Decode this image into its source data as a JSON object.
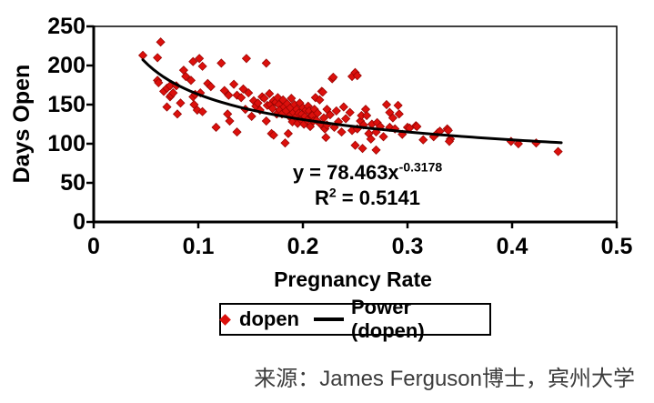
{
  "chart_data": {
    "type": "scatter",
    "xlabel": "Pregnancy Rate",
    "ylabel": "Days Open",
    "xlim": [
      0,
      0.5
    ],
    "ylim": [
      0,
      250
    ],
    "xticks": [
      0,
      0.1,
      0.2,
      0.3,
      0.4,
      0.5
    ],
    "yticks": [
      0,
      50,
      100,
      150,
      200,
      250
    ],
    "grid": false,
    "legend_position": "bottom-center",
    "colors": {
      "marker_fill": "#DC100C",
      "marker_stroke": "#9B0503",
      "trendline": "#000000",
      "axis": "#000000"
    },
    "series": [
      {
        "name": "dopen",
        "kind": "scatter",
        "marker": "diamond",
        "points": [
          [
            0.047,
            213
          ],
          [
            0.061,
            210
          ],
          [
            0.061,
            181
          ],
          [
            0.062,
            178
          ],
          [
            0.064,
            230
          ],
          [
            0.067,
            167
          ],
          [
            0.07,
            171
          ],
          [
            0.07,
            147
          ],
          [
            0.073,
            174
          ],
          [
            0.073,
            160
          ],
          [
            0.074,
            162
          ],
          [
            0.076,
            165
          ],
          [
            0.079,
            174
          ],
          [
            0.08,
            138
          ],
          [
            0.083,
            152
          ],
          [
            0.086,
            194
          ],
          [
            0.088,
            186
          ],
          [
            0.093,
            181
          ],
          [
            0.095,
            205
          ],
          [
            0.095,
            160
          ],
          [
            0.096,
            150
          ],
          [
            0.097,
            163
          ],
          [
            0.099,
            143
          ],
          [
            0.101,
            209
          ],
          [
            0.102,
            165
          ],
          [
            0.104,
            199
          ],
          [
            0.104,
            141
          ],
          [
            0.109,
            177
          ],
          [
            0.112,
            173
          ],
          [
            0.117,
            121
          ],
          [
            0.122,
            203
          ],
          [
            0.125,
            168
          ],
          [
            0.128,
            138
          ],
          [
            0.129,
            162
          ],
          [
            0.13,
            129
          ],
          [
            0.134,
            176
          ],
          [
            0.137,
            162
          ],
          [
            0.137,
            115
          ],
          [
            0.141,
            159
          ],
          [
            0.143,
            170
          ],
          [
            0.145,
            144
          ],
          [
            0.146,
            209
          ],
          [
            0.148,
            165
          ],
          [
            0.151,
            135
          ],
          [
            0.153,
            155
          ],
          [
            0.155,
            148
          ],
          [
            0.157,
            152
          ],
          [
            0.159,
            143
          ],
          [
            0.161,
            160
          ],
          [
            0.163,
            158
          ],
          [
            0.165,
            203
          ],
          [
            0.165,
            129
          ],
          [
            0.166,
            149
          ],
          [
            0.168,
            164
          ],
          [
            0.169,
            150
          ],
          [
            0.17,
            113
          ],
          [
            0.171,
            145
          ],
          [
            0.172,
            155
          ],
          [
            0.172,
            111
          ],
          [
            0.174,
            153
          ],
          [
            0.175,
            138
          ],
          [
            0.176,
            159
          ],
          [
            0.177,
            150
          ],
          [
            0.178,
            143
          ],
          [
            0.18,
            138
          ],
          [
            0.181,
            156
          ],
          [
            0.182,
            147
          ],
          [
            0.183,
            101
          ],
          [
            0.184,
            142
          ],
          [
            0.185,
            151
          ],
          [
            0.186,
            113
          ],
          [
            0.187,
            135
          ],
          [
            0.188,
            146
          ],
          [
            0.189,
            158
          ],
          [
            0.19,
            128
          ],
          [
            0.191,
            140
          ],
          [
            0.192,
            150
          ],
          [
            0.193,
            134
          ],
          [
            0.194,
            144
          ],
          [
            0.195,
            126
          ],
          [
            0.196,
            139
          ],
          [
            0.197,
            152
          ],
          [
            0.198,
            131
          ],
          [
            0.199,
            138
          ],
          [
            0.2,
            146
          ],
          [
            0.201,
            125
          ],
          [
            0.202,
            135
          ],
          [
            0.203,
            143
          ],
          [
            0.204,
            130
          ],
          [
            0.205,
            148
          ],
          [
            0.206,
            142
          ],
          [
            0.207,
            122
          ],
          [
            0.208,
            136
          ],
          [
            0.209,
            136
          ],
          [
            0.21,
            129
          ],
          [
            0.211,
            144
          ],
          [
            0.212,
            159
          ],
          [
            0.213,
            130
          ],
          [
            0.214,
            139
          ],
          [
            0.216,
            156
          ],
          [
            0.217,
            125
          ],
          [
            0.218,
            167
          ],
          [
            0.219,
            166
          ],
          [
            0.22,
            133
          ],
          [
            0.221,
            119
          ],
          [
            0.222,
            108
          ],
          [
            0.223,
            144
          ],
          [
            0.223,
            124
          ],
          [
            0.226,
            137
          ],
          [
            0.228,
            183
          ],
          [
            0.229,
            185
          ],
          [
            0.23,
            121
          ],
          [
            0.232,
            142
          ],
          [
            0.234,
            128
          ],
          [
            0.237,
            115
          ],
          [
            0.239,
            147
          ],
          [
            0.241,
            132
          ],
          [
            0.245,
            140
          ],
          [
            0.247,
            186
          ],
          [
            0.247,
            117
          ],
          [
            0.25,
            191
          ],
          [
            0.25,
            98
          ],
          [
            0.252,
            187
          ],
          [
            0.252,
            119
          ],
          [
            0.255,
            129
          ],
          [
            0.256,
            136
          ],
          [
            0.257,
            94
          ],
          [
            0.258,
            124
          ],
          [
            0.26,
            144
          ],
          [
            0.261,
            136
          ],
          [
            0.263,
            113
          ],
          [
            0.265,
            106
          ],
          [
            0.266,
            125
          ],
          [
            0.27,
            115
          ],
          [
            0.27,
            92
          ],
          [
            0.271,
            127
          ],
          [
            0.274,
            122
          ],
          [
            0.277,
            109
          ],
          [
            0.28,
            150
          ],
          [
            0.283,
            140
          ],
          [
            0.283,
            121
          ],
          [
            0.286,
            133
          ],
          [
            0.288,
            119
          ],
          [
            0.291,
            149
          ],
          [
            0.292,
            138
          ],
          [
            0.295,
            112
          ],
          [
            0.3,
            121
          ],
          [
            0.302,
            120
          ],
          [
            0.308,
            123
          ],
          [
            0.309,
            122
          ],
          [
            0.315,
            105
          ],
          [
            0.325,
            109
          ],
          [
            0.329,
            114
          ],
          [
            0.331,
            116
          ],
          [
            0.338,
            119
          ],
          [
            0.339,
            117
          ],
          [
            0.341,
            106
          ],
          [
            0.34,
            103
          ],
          [
            0.399,
            103
          ],
          [
            0.406,
            100
          ],
          [
            0.423,
            101
          ],
          [
            0.444,
            90
          ]
        ]
      },
      {
        "name": "Power (dopen)",
        "kind": "power-trendline",
        "coefficient": 78.463,
        "exponent": -0.3178,
        "x_range": [
          0.047,
          0.447
        ]
      }
    ],
    "annotation": {
      "equation_prefix": "y = 78.463x",
      "equation_exponent": "-0.3178",
      "r2_prefix": "R",
      "r2_sup": "2",
      "r2_suffix": " = 0.5141"
    }
  },
  "source_note": "来源：James Ferguson博士，宾州大学"
}
